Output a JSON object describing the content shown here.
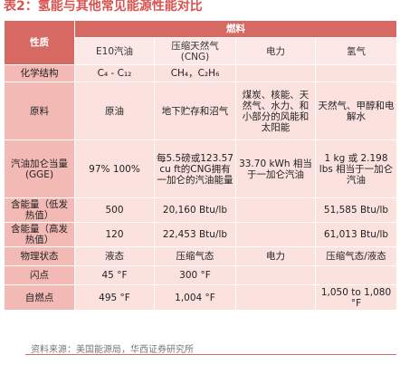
{
  "title": "表2：氢能与其他常见能源性能对比",
  "header": {
    "property": "性质",
    "fuel_group": "燃料",
    "fuels": [
      "E10汽油",
      "压缩天然气\n(CNG)",
      "电力",
      "氢气"
    ]
  },
  "rows": [
    {
      "label": "化学结构",
      "values": [
        "C₄ - C₁₂",
        "CH₄，C₂H₆",
        "",
        ""
      ]
    },
    {
      "label": "原料",
      "values": [
        "原油",
        "地下贮存和沼气",
        "煤炭、核能、天然气、水力、和小部分的风能和太阳能",
        "天然气、甲醇和电解水"
      ]
    },
    {
      "label": "汽油加仑当量 (GGE)",
      "values": [
        "97%  100%",
        "每5.5磅或123.57 cu ft的CNG拥有一加仑的汽油能量",
        "33.70 kWh 相当于一加仑汽油",
        "1 kg 或 2.198 lbs 相当于一加仑汽油"
      ]
    },
    {
      "label": "含能量（低发热值）",
      "values": [
        "500",
        "20,160 Btu/lb",
        "",
        "51,585 Btu/lb"
      ]
    },
    {
      "label": "含能量（高发热值）",
      "values": [
        "120",
        "22,453 Btu/lb",
        "",
        "61,013 Btu/lb"
      ]
    },
    {
      "label": "物理状态",
      "values": [
        "液态",
        "压缩气态",
        "电力",
        "压缩气态/液态"
      ]
    },
    {
      "label": "闪点",
      "values": [
        "45 °F",
        "300 °F",
        "",
        ""
      ]
    },
    {
      "label": "自燃点",
      "values": [
        "495 °F",
        "1,004 °F",
        "",
        "1,050 to 1,080 °F"
      ]
    }
  ],
  "source": "资料来源：美国能源局，华西证券研究所",
  "colors": {
    "title": "#d9534f",
    "header_dark": "#d66a63",
    "label_bg": "#f3b9b4",
    "cell_bg": "#fbe2df"
  }
}
